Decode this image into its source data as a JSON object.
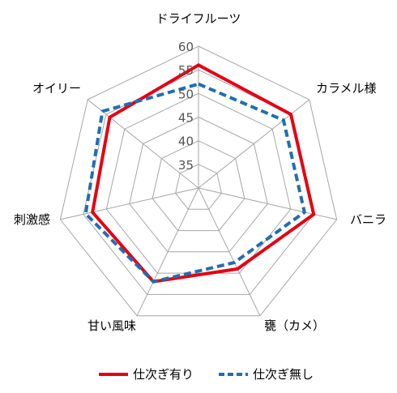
{
  "chart_data": {
    "type": "radar",
    "axes": [
      "ドライフルーツ",
      "カラメル様",
      "バニラ",
      "甕（カメ）",
      "甘い風味",
      "刺激感",
      "オイリー"
    ],
    "r_ticks": [
      35,
      40,
      45,
      50,
      55,
      60
    ],
    "r_range": [
      30,
      60
    ],
    "series": [
      {
        "name": "仕次ぎ有り",
        "color": "#e60012",
        "dash": "solid",
        "values": [
          56,
          55,
          55,
          49,
          52,
          53,
          54
        ]
      },
      {
        "name": "仕次ぎ無し",
        "color": "#1f6eb4",
        "dash": "dashed",
        "values": [
          52,
          53,
          53,
          47.5,
          52,
          54.5,
          56
        ]
      }
    ],
    "legend_position": "bottom",
    "grid": true
  }
}
